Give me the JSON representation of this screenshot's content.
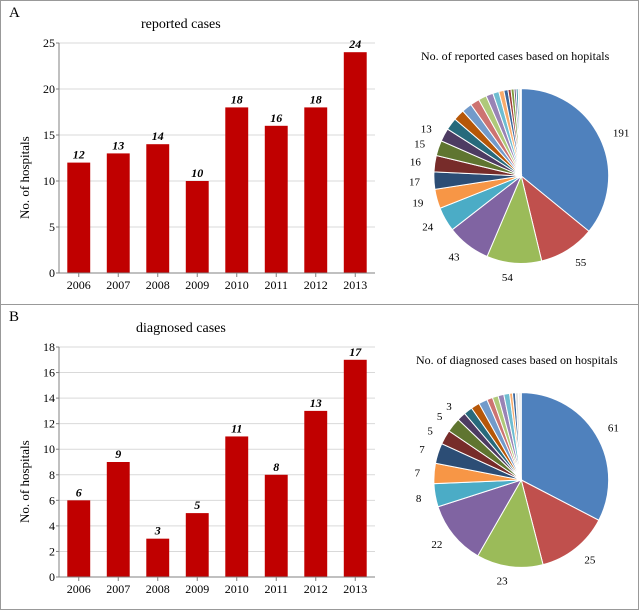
{
  "panel_a": {
    "label": "A",
    "bar_chart": {
      "type": "bar",
      "title": "reported cases",
      "title_fontsize": 14,
      "ylabel": "No. of hospitals",
      "label_fontsize": 13,
      "categories": [
        "2006",
        "2007",
        "2008",
        "2009",
        "2010",
        "2011",
        "2012",
        "2013"
      ],
      "values": [
        12,
        13,
        14,
        10,
        18,
        16,
        18,
        24
      ],
      "bar_color": "#c00000",
      "ylim": [
        0,
        25
      ],
      "ytick_step": 5,
      "grid_color": "#d9d9d9",
      "axis_color": "#808080",
      "background_color": "#ffffff",
      "value_fontsize": 12,
      "tick_fontsize": 12,
      "bar_width": 0.58
    },
    "pie_chart": {
      "type": "pie",
      "title": "No. of reported cases based on hopitals",
      "title_fontsize": 12,
      "slices": [
        {
          "value": 191,
          "color": "#4f81bd",
          "show_label": true
        },
        {
          "value": 55,
          "color": "#c0504d",
          "show_label": true
        },
        {
          "value": 54,
          "color": "#9bbb59",
          "show_label": true
        },
        {
          "value": 43,
          "color": "#8064a2",
          "show_label": true
        },
        {
          "value": 24,
          "color": "#4bacc6",
          "show_label": true
        },
        {
          "value": 19,
          "color": "#f79646",
          "show_label": true
        },
        {
          "value": 17,
          "color": "#2c4d75",
          "show_label": true
        },
        {
          "value": 16,
          "color": "#772c2a",
          "show_label": true
        },
        {
          "value": 15,
          "color": "#5f7530",
          "show_label": true
        },
        {
          "value": 13,
          "color": "#4d3b62",
          "show_label": true
        },
        {
          "value": 12,
          "color": "#276a7c",
          "show_label": false
        },
        {
          "value": 11,
          "color": "#b65708",
          "show_label": false
        },
        {
          "value": 10,
          "color": "#729aca",
          "show_label": false
        },
        {
          "value": 9,
          "color": "#cd7371",
          "show_label": false
        },
        {
          "value": 8,
          "color": "#afc97a",
          "show_label": false
        },
        {
          "value": 7,
          "color": "#9983b5",
          "show_label": false
        },
        {
          "value": 6,
          "color": "#6fbdd1",
          "show_label": false
        },
        {
          "value": 5,
          "color": "#f9ab6b",
          "show_label": false
        },
        {
          "value": 4,
          "color": "#3a679c",
          "show_label": false
        },
        {
          "value": 3,
          "color": "#9e3b38",
          "show_label": false
        },
        {
          "value": 3,
          "color": "#7e9c40",
          "show_label": false
        },
        {
          "value": 2,
          "color": "#664f83",
          "show_label": false
        },
        {
          "value": 2,
          "color": "#348da5",
          "show_label": false
        },
        {
          "value": 2,
          "color": "#e0e0e0",
          "show_label": false
        },
        {
          "value": 1,
          "color": "#f0f0f0",
          "show_label": false
        }
      ],
      "border_color": "#ffffff",
      "label_fontsize": 11
    }
  },
  "panel_b": {
    "label": "B",
    "bar_chart": {
      "type": "bar",
      "title": "diagnosed cases",
      "title_fontsize": 14,
      "ylabel": "No. of hospitals",
      "label_fontsize": 13,
      "categories": [
        "2006",
        "2007",
        "2008",
        "2009",
        "2010",
        "2011",
        "2012",
        "2013"
      ],
      "values": [
        6,
        9,
        3,
        5,
        11,
        8,
        13,
        17
      ],
      "bar_color": "#c00000",
      "ylim": [
        0,
        18
      ],
      "ytick_step": 2,
      "grid_color": "#d9d9d9",
      "axis_color": "#808080",
      "background_color": "#ffffff",
      "value_fontsize": 12,
      "tick_fontsize": 12,
      "bar_width": 0.58
    },
    "pie_chart": {
      "type": "pie",
      "title": "No. of diagnosed cases based on hospitals",
      "title_fontsize": 12,
      "slices": [
        {
          "value": 61,
          "color": "#4f81bd",
          "show_label": true
        },
        {
          "value": 25,
          "color": "#c0504d",
          "show_label": true
        },
        {
          "value": 23,
          "color": "#9bbb59",
          "show_label": true
        },
        {
          "value": 22,
          "color": "#8064a2",
          "show_label": true
        },
        {
          "value": 8,
          "color": "#4bacc6",
          "show_label": true
        },
        {
          "value": 7,
          "color": "#f79646",
          "show_label": true
        },
        {
          "value": 7,
          "color": "#2c4d75",
          "show_label": true
        },
        {
          "value": 5,
          "color": "#772c2a",
          "show_label": true
        },
        {
          "value": 5,
          "color": "#5f7530",
          "show_label": true
        },
        {
          "value": 3,
          "color": "#4d3b62",
          "show_label": true
        },
        {
          "value": 3,
          "color": "#276a7c",
          "show_label": false
        },
        {
          "value": 3,
          "color": "#b65708",
          "show_label": false
        },
        {
          "value": 3,
          "color": "#729aca",
          "show_label": false
        },
        {
          "value": 2,
          "color": "#cd7371",
          "show_label": false
        },
        {
          "value": 2,
          "color": "#afc97a",
          "show_label": false
        },
        {
          "value": 2,
          "color": "#9983b5",
          "show_label": false
        },
        {
          "value": 2,
          "color": "#6fbdd1",
          "show_label": false
        },
        {
          "value": 1,
          "color": "#f9ab6b",
          "show_label": false
        },
        {
          "value": 1,
          "color": "#3a679c",
          "show_label": false
        },
        {
          "value": 1,
          "color": "#e0e0e0",
          "show_label": false
        },
        {
          "value": 1,
          "color": "#f0f0f0",
          "show_label": false
        }
      ],
      "border_color": "#ffffff",
      "label_fontsize": 11
    }
  }
}
